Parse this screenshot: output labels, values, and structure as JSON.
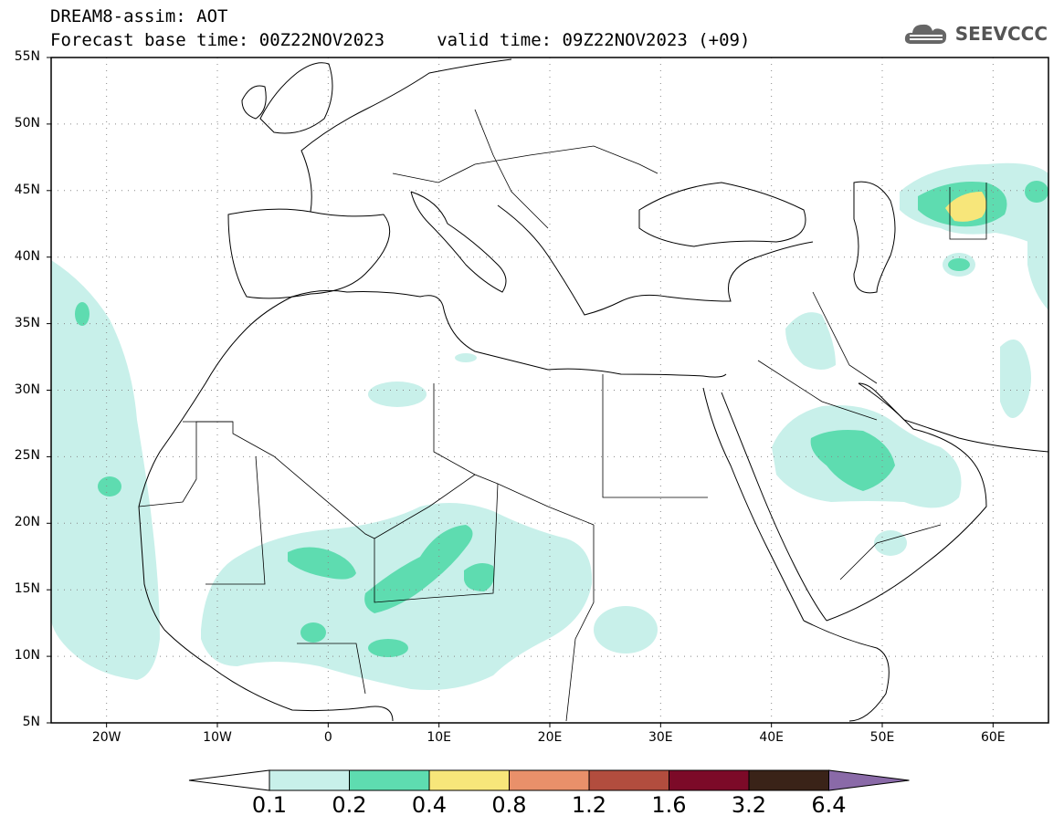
{
  "header": {
    "line1": "DREAM8-assim: AOT",
    "line2": "Forecast base time: 00Z22NOV2023     valid time: 09Z22NOV2023 (+09)"
  },
  "logo": {
    "text": "SEEVCCC",
    "icon": "cloud-icon"
  },
  "map": {
    "lon_range": [
      -25,
      65
    ],
    "lat_range": [
      5,
      55
    ],
    "lat_ticks": [
      "5N",
      "10N",
      "15N",
      "20N",
      "25N",
      "30N",
      "35N",
      "40N",
      "45N",
      "50N",
      "55N"
    ],
    "lon_ticks": [
      "20W",
      "10W",
      "0",
      "10E",
      "20E",
      "30E",
      "40E",
      "50E",
      "60E"
    ],
    "grid": "dotted"
  },
  "colorbar": {
    "labels": [
      "0.1",
      "0.2",
      "0.4",
      "0.8",
      "1.2",
      "1.6",
      "3.2",
      "6.4"
    ],
    "colors": [
      "#c8f0ea",
      "#5edcb0",
      "#f7e67a",
      "#e9906a",
      "#b24d3e",
      "#7c0a28",
      "#3a2318",
      "#8a6aa8"
    ]
  }
}
